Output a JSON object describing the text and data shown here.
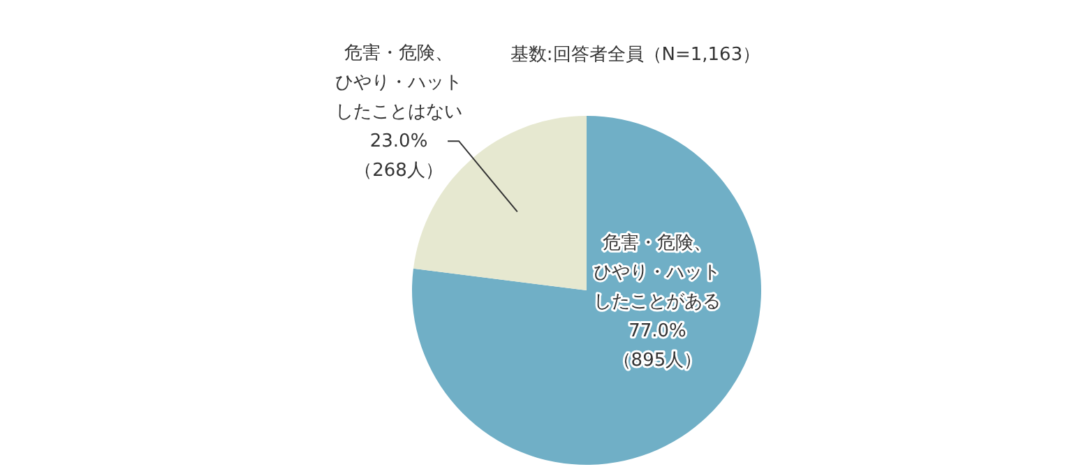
{
  "chart_data": {
    "type": "pie",
    "annotations": [
      "基数:回答者全員（N=1,163）"
    ],
    "categories": [
      "危害・危険、ひやり・ハットしたことがある",
      "危害・危険、ひやり・ハットしたことはない"
    ],
    "values": [
      77.0,
      23.0
    ],
    "value_labels": [
      "77.0%\n（895人）",
      "23.0%\n（268人）"
    ],
    "colors": [
      "#70afc6",
      "#e6e8d0"
    ]
  }
}
